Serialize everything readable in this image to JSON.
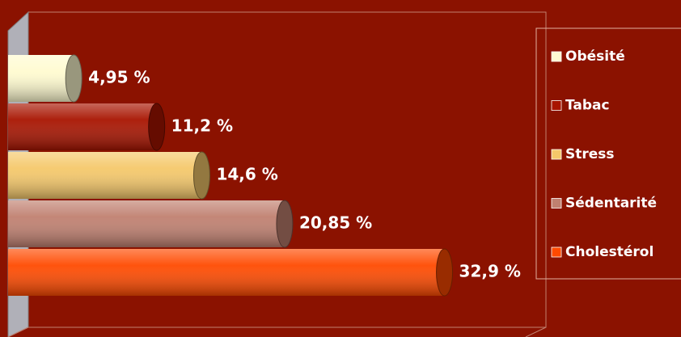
{
  "chart_data": {
    "type": "bar",
    "orientation": "horizontal",
    "categories": [
      "Obésité",
      "Tabac",
      "Stress",
      "Sédentarité",
      "Cholestérol"
    ],
    "values": [
      4.95,
      11.2,
      14.6,
      20.85,
      32.9
    ],
    "value_labels": [
      "4,95 %",
      "11,2 %",
      "14,6 %",
      "20,85 %",
      "32,9 %"
    ],
    "colors": [
      "#fffbd0",
      "#a81400",
      "#f5c86a",
      "#c08070",
      "#ff4a00"
    ],
    "legend": "right"
  }
}
